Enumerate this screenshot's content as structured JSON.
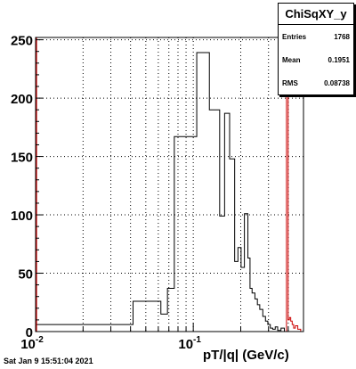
{
  "stats": {
    "title": "ChiSqXY_y",
    "entries_label": "Entries",
    "entries_value": "1768",
    "mean_label": "Mean",
    "mean_value": "0.1951",
    "rms_label": "RMS",
    "rms_value": "0.08738"
  },
  "xlabel": "pT/|q| (GeV/c)",
  "datestamp": "Sat Jan  9 15:51:04 2021",
  "chart_data": {
    "type": "bar",
    "title": "",
    "xlabel": "pT/|q| (GeV/c)",
    "ylabel": "",
    "xscale": "log",
    "xlim": [
      0.01,
      0.5
    ],
    "ylim": [
      0,
      252
    ],
    "grid": true,
    "yticks": [
      0,
      50,
      100,
      150,
      200,
      250
    ],
    "xtick_labels": [
      {
        "base": "10",
        "exp": "-2",
        "value": 0.01
      },
      {
        "base": "10",
        "exp": "-1",
        "value": 0.1
      }
    ],
    "color": "#000000",
    "accent_color": "#cc0000",
    "bins": [
      {
        "x0": 0.01,
        "x1": 0.0415,
        "y": 6
      },
      {
        "x0": 0.0415,
        "x1": 0.0623,
        "y": 26
      },
      {
        "x0": 0.0623,
        "x1": 0.0686,
        "y": 15
      },
      {
        "x0": 0.0686,
        "x1": 0.0758,
        "y": 37
      },
      {
        "x0": 0.0758,
        "x1": 0.0835,
        "y": 167
      },
      {
        "x0": 0.0835,
        "x1": 0.1052,
        "y": 167
      },
      {
        "x0": 0.1052,
        "x1": 0.1265,
        "y": 239
      },
      {
        "x0": 0.1265,
        "x1": 0.147,
        "y": 190
      },
      {
        "x0": 0.147,
        "x1": 0.158,
        "y": 99
      },
      {
        "x0": 0.158,
        "x1": 0.17,
        "y": 187
      },
      {
        "x0": 0.17,
        "x1": 0.183,
        "y": 148
      },
      {
        "x0": 0.183,
        "x1": 0.192,
        "y": 60
      },
      {
        "x0": 0.192,
        "x1": 0.201,
        "y": 72
      },
      {
        "x0": 0.201,
        "x1": 0.211,
        "y": 55
      },
      {
        "x0": 0.211,
        "x1": 0.222,
        "y": 101
      },
      {
        "x0": 0.222,
        "x1": 0.229,
        "y": 63
      },
      {
        "x0": 0.229,
        "x1": 0.236,
        "y": 37
      },
      {
        "x0": 0.236,
        "x1": 0.246,
        "y": 33
      },
      {
        "x0": 0.246,
        "x1": 0.255,
        "y": 28
      },
      {
        "x0": 0.255,
        "x1": 0.264,
        "y": 23
      },
      {
        "x0": 0.264,
        "x1": 0.276,
        "y": 19
      },
      {
        "x0": 0.276,
        "x1": 0.287,
        "y": 13
      },
      {
        "x0": 0.287,
        "x1": 0.297,
        "y": 9
      },
      {
        "x0": 0.297,
        "x1": 0.308,
        "y": 6
      },
      {
        "x0": 0.308,
        "x1": 0.319,
        "y": 3
      },
      {
        "x0": 0.319,
        "x1": 0.331,
        "y": 2
      },
      {
        "x0": 0.331,
        "x1": 0.343,
        "y": 4
      },
      {
        "x0": 0.343,
        "x1": 0.36,
        "y": 1
      },
      {
        "x0": 0.36,
        "x1": 0.378,
        "y": 3
      },
      {
        "x0": 0.378,
        "x1": 0.397,
        "y": 0
      }
    ],
    "accent_bins": [
      {
        "x0": 0.39,
        "x1": 0.3995,
        "y": 252
      },
      {
        "x0": 0.3995,
        "x1": 0.407,
        "y": 10
      },
      {
        "x0": 0.407,
        "x1": 0.415,
        "y": 12
      },
      {
        "x0": 0.415,
        "x1": 0.424,
        "y": 9
      },
      {
        "x0": 0.424,
        "x1": 0.433,
        "y": 6
      },
      {
        "x0": 0.433,
        "x1": 0.444,
        "y": 3
      },
      {
        "x0": 0.444,
        "x1": 0.46,
        "y": 5
      },
      {
        "x0": 0.46,
        "x1": 0.48,
        "y": 2
      }
    ],
    "left_accent_bin": {
      "x0": 0.01,
      "x1": 0.0103,
      "y": 252
    }
  }
}
